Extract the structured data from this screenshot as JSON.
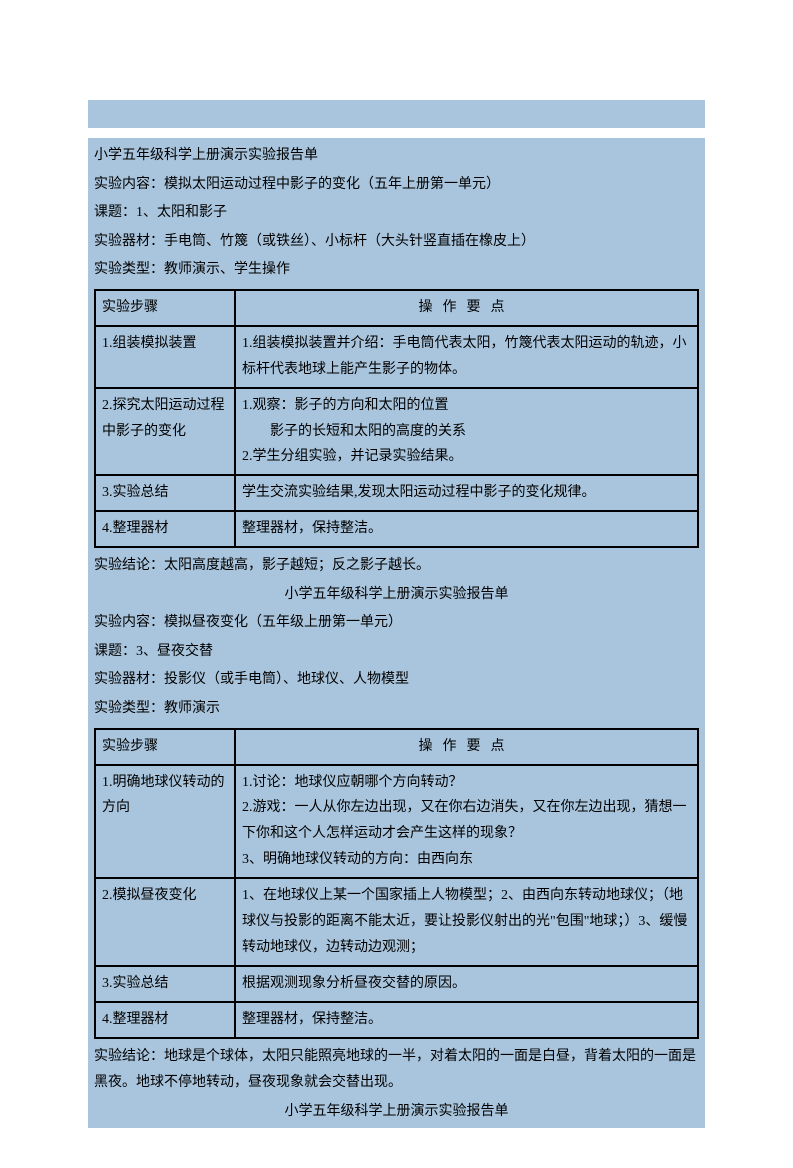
{
  "bg_color": "#a9c5dd",
  "text_color": "#000000",
  "doc1": {
    "title": "小学五年级科学上册演示实验报告单",
    "lines": [
      "实验内容：模拟太阳运动过程中影子的变化（五年上册第一单元）",
      "课题：1、太阳和影子",
      "实验器材：手电筒、竹篾（或铁丝）、小标杆（大头针竖直插在橡皮上）",
      "实验类型：教师演示、学生操作"
    ],
    "table": {
      "h1": "实验步骤",
      "h2": "操作要点",
      "rows": [
        {
          "step": "1.组装模拟装置",
          "ops": [
            "1.组装模拟装置并介绍：手电筒代表太阳，竹篾代表太阳运动的轨迹，小标杆代表地球上能产生影子的物体。"
          ]
        },
        {
          "step": "2.探究太阳运动过程中影子的变化",
          "ops": [
            "1.观察：影子的方向和太阳的位置",
            "影子的长短和太阳的高度的关系",
            "2.学生分组实验，并记录实验结果。"
          ],
          "indent_idx": 1
        },
        {
          "step": "3.实验总结",
          "ops": [
            "学生交流实验结果,发现太阳运动过程中影子的变化规律。"
          ]
        },
        {
          "step": "4.整理器材",
          "ops": [
            "整理器材，保持整洁。"
          ]
        }
      ]
    },
    "conclusion": "实验结论：太阳高度越高，影子越短；反之影子越长。"
  },
  "doc2": {
    "title": "小学五年级科学上册演示实验报告单",
    "lines": [
      "实验内容：模拟昼夜变化（五年级上册第一单元）",
      "课题：3、昼夜交替",
      "实验器材：投影仪（或手电筒）、地球仪、人物模型",
      "实验类型：教师演示"
    ],
    "table": {
      "h1": "实验步骤",
      "h2": "操作要点",
      "rows": [
        {
          "step": "1.明确地球仪转动的方向",
          "ops": [
            "1.讨论：地球仪应朝哪个方向转动？",
            "2.游戏：一人从你左边出现，又在你右边消失，又在你左边出现，猜想一下你和这个人怎样运动才会产生这样的现象？",
            "3、明确地球仪转动的方向：由西向东"
          ]
        },
        {
          "step": "2.模拟昼夜变化",
          "ops": [
            "1、在地球仪上某一个国家插上人物模型；2、由西向东转动地球仪；（地球仪与投影的距离不能太近，要让投影仪射出的光\"包围\"地球；）3、缓慢转动地球仪，边转动边观测；"
          ]
        },
        {
          "step": "3.实验总结",
          "ops": [
            "根据观测现象分析昼夜交替的原因。"
          ]
        },
        {
          "step": "4.整理器材",
          "ops": [
            "整理器材，保持整洁。"
          ]
        }
      ]
    },
    "conclusion": "实验结论：地球是个球体，太阳只能照亮地球的一半，对着太阳的一面是白昼，背着太阳的一面是黑夜。地球不停地转动，昼夜现象就会交替出现。"
  },
  "doc3": {
    "title": "小学五年级科学上册演示实验报告单"
  }
}
